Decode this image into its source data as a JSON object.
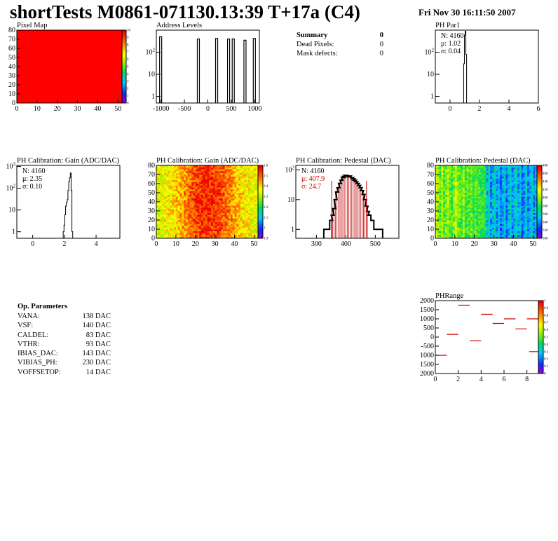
{
  "page": {
    "title": "shortTests M0861-071130.13:39 T+17a (C4)",
    "datetime": "Fri Nov 30 16:11:50 2007"
  },
  "summary": {
    "heading": "Summary",
    "heading_value": "0",
    "rows": [
      {
        "label": "Dead Pixels:",
        "value": "0"
      },
      {
        "label": "Mask defects:",
        "value": "0"
      }
    ]
  },
  "op_params": {
    "heading": "Op. Parameters",
    "rows": [
      {
        "label": "VANA:",
        "value": "138 DAC"
      },
      {
        "label": "VSF:",
        "value": "140 DAC"
      },
      {
        "label": "CALDEL:",
        "value": "83 DAC"
      },
      {
        "label": "VTHR:",
        "value": "93 DAC"
      },
      {
        "label": "IBIAS_DAC:",
        "value": "143 DAC"
      },
      {
        "label": "VIBIAS_PH:",
        "value": "230 DAC"
      },
      {
        "label": "VOFFSETOP:",
        "value": "14 DAC"
      }
    ]
  },
  "colors": {
    "hist_line": "#000000",
    "pixel_map": "#ff0000",
    "fit_marker": "#cc0000",
    "stat_red": "#cc0000",
    "pedestal_fill": "#cc3333"
  },
  "chart_data": [
    {
      "id": "pixel-map",
      "type": "heatmap",
      "title": "Pixel Map",
      "xlim": [
        0,
        52
      ],
      "ylim": [
        0,
        80
      ],
      "xticks": [
        "0",
        "10",
        "20",
        "30",
        "40",
        "50"
      ],
      "yticks": [
        "0",
        "10",
        "20",
        "30",
        "40",
        "50",
        "60",
        "70",
        "80"
      ],
      "fill": "uniform-max",
      "zlim": [
        0,
        10
      ],
      "zticks": [
        "0",
        "1",
        "2",
        "3",
        "4",
        "5",
        "6",
        "7",
        "8",
        "9",
        "10"
      ]
    },
    {
      "id": "address-levels",
      "type": "bar",
      "title": "Address Levels",
      "yscale": "log",
      "xlim": [
        -1100,
        1100
      ],
      "xticks": [
        "-1000",
        "-500",
        "0",
        "500",
        "1000"
      ],
      "yticks": [
        "1",
        "10",
        "10^2"
      ],
      "peaks": [
        {
          "x": -1000,
          "y": 500
        },
        {
          "x": -195,
          "y": 400
        },
        {
          "x": 195,
          "y": 420
        },
        {
          "x": 450,
          "y": 400
        },
        {
          "x": 550,
          "y": 400
        },
        {
          "x": 800,
          "y": 350
        },
        {
          "x": 1000,
          "y": 420
        }
      ]
    },
    {
      "id": "ph-par1",
      "type": "bar",
      "title": "PH Par1",
      "yscale": "log",
      "xlim": [
        -1,
        6
      ],
      "xticks": [
        "0",
        "2",
        "4",
        "6"
      ],
      "yticks": [
        "1",
        "10",
        "10^2"
      ],
      "stats": {
        "N": "4160",
        "mu": "1.02",
        "sigma": "0.04"
      },
      "x": [
        0.95,
        1.0,
        1.05,
        1.1
      ],
      "values": [
        30,
        600,
        900,
        80
      ]
    },
    {
      "id": "gain-1d",
      "type": "bar",
      "title": "PH Calibration: Gain (ADC/DAC)",
      "yscale": "log",
      "xlim": [
        -1,
        5.5
      ],
      "xticks": [
        "0",
        "2",
        "4"
      ],
      "yticks": [
        "1",
        "10",
        "10^2",
        "10^3"
      ],
      "stats": {
        "N": "4160",
        "mu": "2.35",
        "sigma": "0.10"
      },
      "x": [
        1.95,
        2.0,
        2.05,
        2.1,
        2.15,
        2.2,
        2.25,
        2.3,
        2.35,
        2.4,
        2.45,
        2.5
      ],
      "values": [
        1,
        2,
        6,
        15,
        22,
        30,
        80,
        200,
        300,
        500,
        80,
        1
      ]
    },
    {
      "id": "gain-2d",
      "type": "heatmap",
      "title": "PH Calibration: Gain (ADC/DAC)",
      "xlim": [
        0,
        52
      ],
      "ylim": [
        0,
        80
      ],
      "xticks": [
        "0",
        "10",
        "20",
        "30",
        "40",
        "50"
      ],
      "yticks": [
        "0",
        "10",
        "20",
        "30",
        "40",
        "50",
        "60",
        "70",
        "80"
      ],
      "zlim": [
        1.9,
        2.6
      ],
      "zticks": [
        "1.9",
        "2",
        "2.1",
        "2.2",
        "2.3",
        "2.4",
        "2.5",
        "2.6"
      ],
      "pattern": "high (red) in the central columns, lower (yellow/green) at the edges"
    },
    {
      "id": "pedestal-1d",
      "type": "bar",
      "title": "PH Calibration: Pedestal (DAC)",
      "yscale": "log",
      "xlim": [
        230,
        580
      ],
      "xticks": [
        "300",
        "400",
        "500"
      ],
      "yticks": [
        "1",
        "10",
        "10^2"
      ],
      "stats": {
        "N": "4160",
        "mu": "407.9",
        "sigma": "24.7"
      },
      "fit_range": [
        352,
        470
      ],
      "x": [
        330,
        340,
        350,
        355,
        360,
        365,
        370,
        375,
        380,
        385,
        390,
        395,
        400,
        405,
        410,
        415,
        420,
        425,
        430,
        435,
        440,
        445,
        450,
        455,
        460,
        465,
        470,
        475,
        480,
        490,
        500,
        510,
        520
      ],
      "values": [
        1,
        1,
        2,
        3,
        5,
        10,
        18,
        25,
        35,
        45,
        55,
        60,
        65,
        65,
        62,
        58,
        55,
        50,
        45,
        40,
        35,
        30,
        25,
        20,
        15,
        10,
        6,
        4,
        3,
        2,
        1,
        1,
        1
      ]
    },
    {
      "id": "pedestal-2d",
      "type": "heatmap",
      "title": "PH Calibration: Pedestal (DAC)",
      "xlim": [
        0,
        52
      ],
      "ylim": [
        0,
        80
      ],
      "xticks": [
        "0",
        "10",
        "20",
        "30",
        "40",
        "50"
      ],
      "yticks": [
        "0",
        "10",
        "20",
        "30",
        "40",
        "50",
        "60",
        "70",
        "80"
      ],
      "zticks": [
        "300",
        "320",
        "340",
        "360",
        "380",
        "400",
        "420",
        "440",
        "460",
        "480"
      ],
      "pattern": "yellow/green on the left columns, blue on the right columns, vertical streaks"
    },
    {
      "id": "ph-range",
      "type": "scatter",
      "title": "PHRange",
      "xlim": [
        0,
        9
      ],
      "ylim": [
        -2000,
        2000
      ],
      "xticks": [
        "0",
        "2",
        "4",
        "6",
        "8"
      ],
      "yticks": [
        "2000",
        "1500",
        "1000",
        "500",
        "0",
        "-500",
        "1000",
        "1500",
        "2000"
      ],
      "zticks": [
        "0",
        "0.1",
        "0.2",
        "0.3",
        "0.4",
        "0.5",
        "0.6",
        "0.7",
        "0.8",
        "0.9",
        "1"
      ],
      "segments": [
        {
          "x": 0.5,
          "y": -1000
        },
        {
          "x": 1.5,
          "y": 150
        },
        {
          "x": 2.5,
          "y": 1750
        },
        {
          "x": 3.5,
          "y": -200
        },
        {
          "x": 4.5,
          "y": 1250
        },
        {
          "x": 5.5,
          "y": 750
        },
        {
          "x": 6.5,
          "y": 1000
        },
        {
          "x": 7.5,
          "y": 450
        },
        {
          "x": 8.5,
          "y": 1000
        },
        {
          "x": 8.7,
          "y": -800
        }
      ]
    }
  ]
}
